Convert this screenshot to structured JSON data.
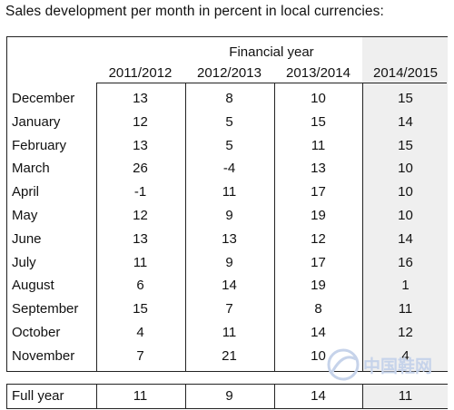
{
  "title": "Sales development per month in percent in local currencies:",
  "header": {
    "group_label": "Financial year",
    "years": [
      "2011/2012",
      "2012/2013",
      "2013/2014",
      "2014/2015"
    ]
  },
  "rows": [
    {
      "month": "December",
      "values": [
        "13",
        "8",
        "10",
        "15"
      ]
    },
    {
      "month": "January",
      "values": [
        "12",
        "5",
        "15",
        "14"
      ]
    },
    {
      "month": "February",
      "values": [
        "13",
        "5",
        "11",
        "15"
      ]
    },
    {
      "month": "March",
      "values": [
        "26",
        "-4",
        "13",
        "10"
      ]
    },
    {
      "month": "April",
      "values": [
        "-1",
        "11",
        "17",
        "10"
      ]
    },
    {
      "month": "May",
      "values": [
        "12",
        "9",
        "19",
        "10"
      ]
    },
    {
      "month": "June",
      "values": [
        "13",
        "13",
        "12",
        "14"
      ]
    },
    {
      "month": "July",
      "values": [
        "11",
        "9",
        "17",
        "16"
      ]
    },
    {
      "month": "August",
      "values": [
        "6",
        "14",
        "19",
        "1"
      ]
    },
    {
      "month": "September",
      "values": [
        "15",
        "7",
        "8",
        "11"
      ]
    },
    {
      "month": "October",
      "values": [
        "4",
        "11",
        "14",
        "12"
      ]
    },
    {
      "month": "November",
      "values": [
        "7",
        "21",
        "10",
        "4"
      ]
    }
  ],
  "full_year": {
    "label": "Full year",
    "values": [
      "11",
      "9",
      "14",
      "11"
    ]
  },
  "watermark": {
    "text": "中国鞋网",
    "color": "#b8c8e4"
  }
}
